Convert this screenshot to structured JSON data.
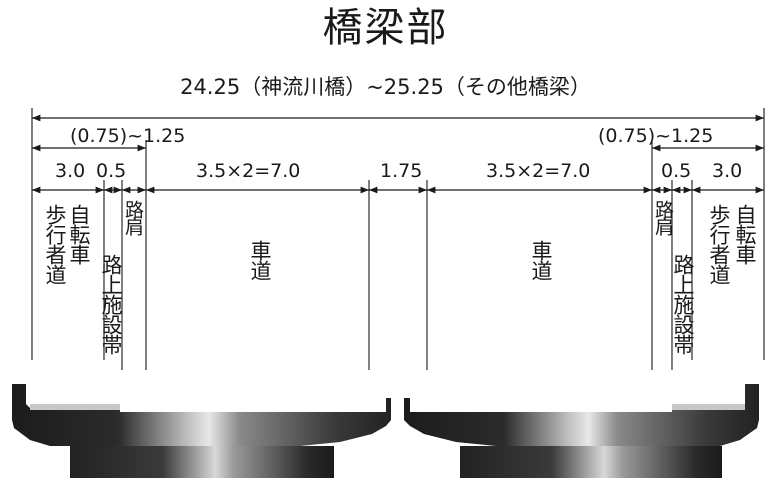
{
  "title": "橋梁部",
  "subtitle": "24.25（神流川橋）~25.25（その他橋梁）",
  "dims": {
    "left_shoulder_range": "(0.75)~1.25",
    "right_shoulder_range": "(0.75)~1.25",
    "left_sidewalk": "3.0",
    "left_facility": "0.5",
    "left_carriageway": "3.5×2=7.0",
    "median": "1.75",
    "right_carriageway": "3.5×2=7.0",
    "right_facility": "0.5",
    "right_sidewalk": "3.0"
  },
  "zones": {
    "left_bike_lane": "自転車",
    "left_pedestrian": "歩行者道",
    "left_facility_zone": "路上施設帯",
    "left_shoulder": "路肩",
    "left_roadway": "車道",
    "right_roadway": "車道",
    "right_shoulder": "路肩",
    "right_facility_zone": "路上施設帯",
    "right_bike_lane": "自転車",
    "right_pedestrian": "歩行者道"
  }
}
